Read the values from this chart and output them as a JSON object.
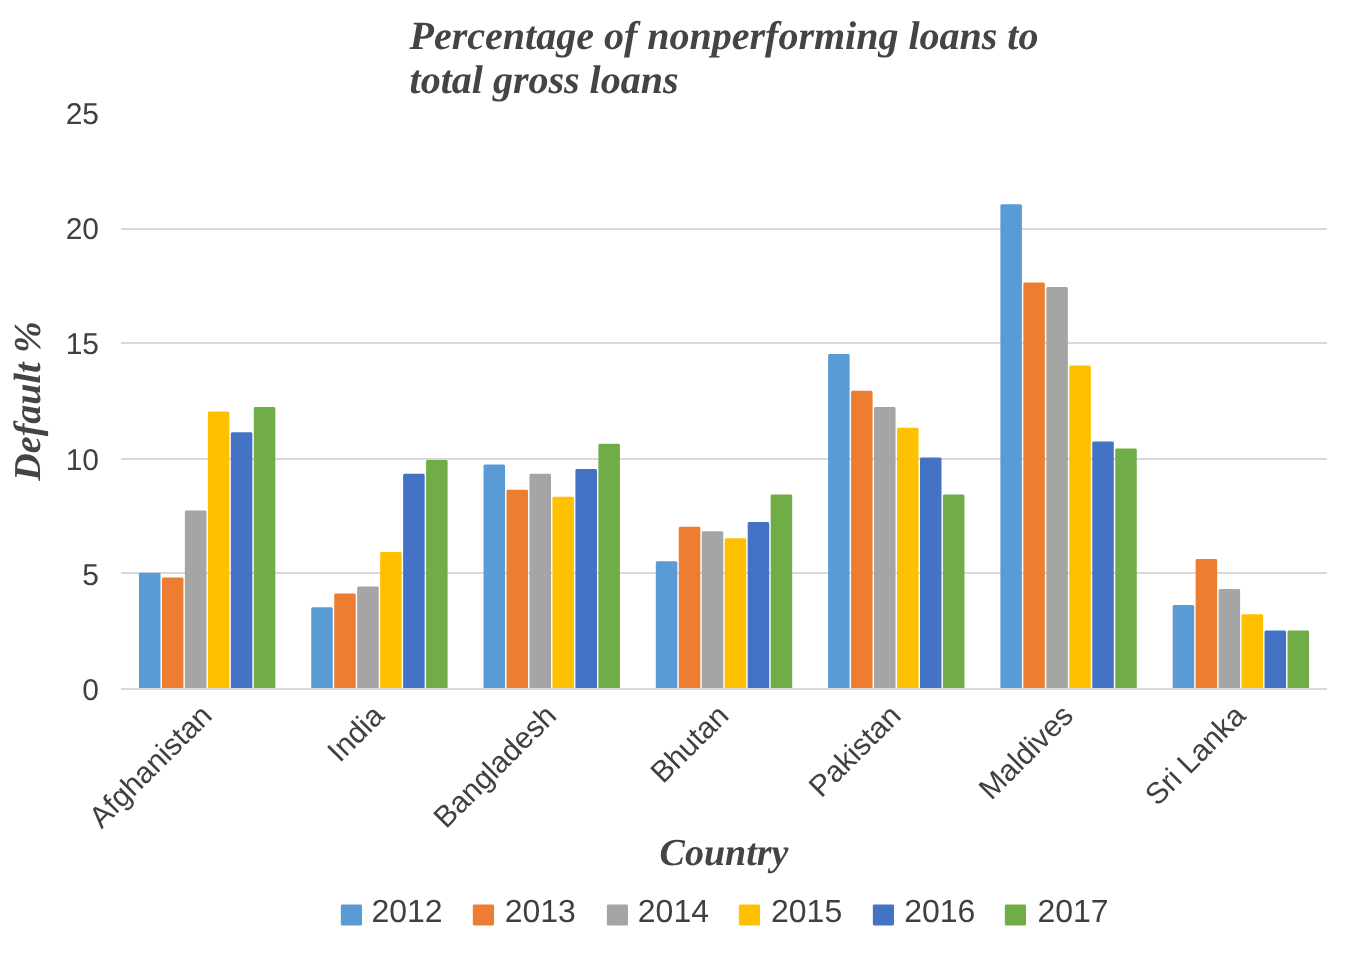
{
  "chart_data": {
    "type": "bar",
    "title": "Percentage of nonperforming loans to\ntotal gross loans",
    "xlabel": "Country",
    "ylabel": "Default %",
    "categories": [
      "Afghanistan",
      "India",
      "Bangladesh",
      "Bhutan",
      "Pakistan",
      "Maldives",
      "Sri Lanka"
    ],
    "series": [
      {
        "name": "2012",
        "color": "#5b9bd5",
        "values": [
          5.0,
          3.5,
          9.7,
          5.5,
          14.5,
          21.0,
          3.6
        ]
      },
      {
        "name": "2013",
        "color": "#ed7d31",
        "values": [
          4.8,
          4.1,
          8.6,
          7.0,
          12.9,
          17.6,
          5.6
        ]
      },
      {
        "name": "2014",
        "color": "#a5a5a5",
        "values": [
          7.7,
          4.4,
          9.3,
          6.8,
          12.2,
          17.4,
          4.3
        ]
      },
      {
        "name": "2015",
        "color": "#ffc000",
        "values": [
          12.0,
          5.9,
          8.3,
          6.5,
          11.3,
          14.0,
          3.2
        ]
      },
      {
        "name": "2016",
        "color": "#4472c4",
        "values": [
          11.1,
          9.3,
          9.5,
          7.2,
          10.0,
          10.7,
          2.5
        ]
      },
      {
        "name": "2017",
        "color": "#70ad47",
        "values": [
          12.2,
          9.9,
          10.6,
          8.4,
          8.4,
          10.4,
          2.5
        ]
      }
    ],
    "ylim": [
      0,
      25
    ],
    "yticks": [
      0,
      5,
      10,
      15,
      20,
      25
    ],
    "grid": "y",
    "legend": "bottom"
  }
}
